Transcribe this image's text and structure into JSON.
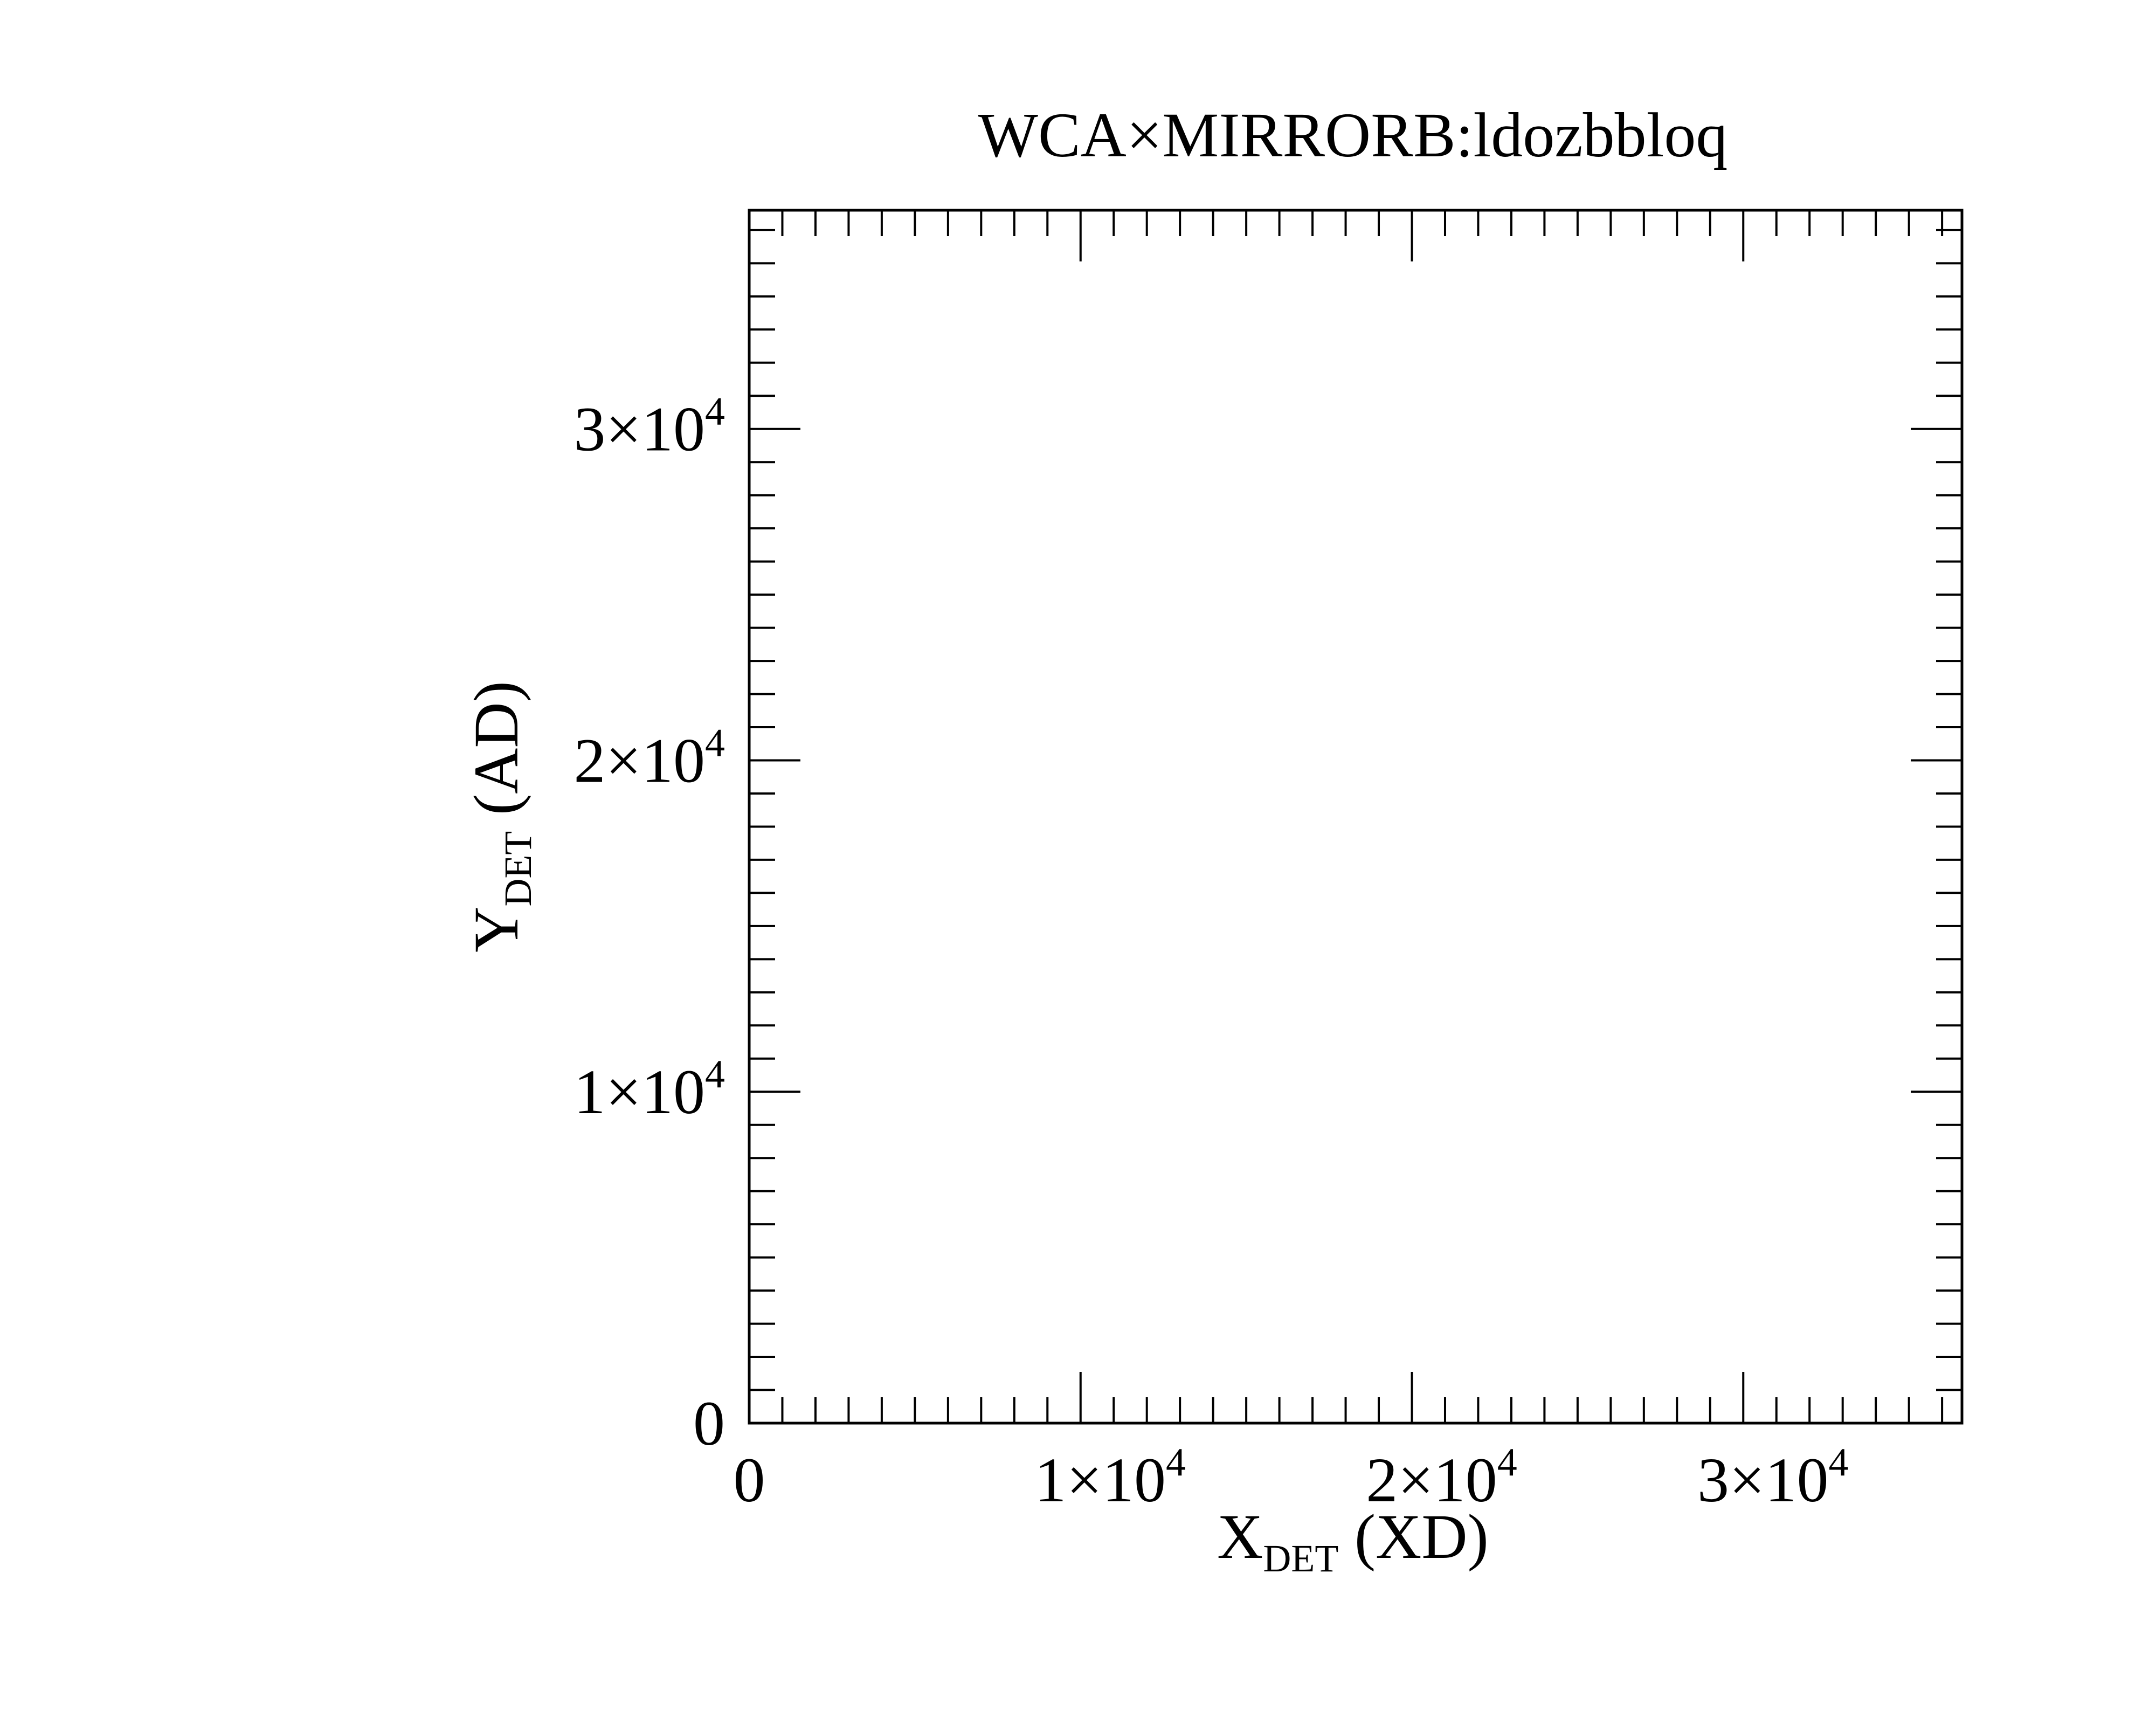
{
  "chart_data": {
    "type": "scatter",
    "title": "WCA×MIRRORB:ldozbbloq",
    "xlabel": {
      "main": "X",
      "sub": "DET",
      "unit": " (XD)"
    },
    "ylabel": {
      "main": "Y",
      "sub": "DET",
      "unit": " (AD)"
    },
    "xlim": [
      0,
      36600
    ],
    "ylim": [
      0,
      36600
    ],
    "major_step": 10000,
    "minor_step": 1000,
    "x_ticks": [
      {
        "value": 0,
        "mantissa": "0",
        "exponent": ""
      },
      {
        "value": 10000,
        "mantissa": "1×10",
        "exponent": "4"
      },
      {
        "value": 20000,
        "mantissa": "2×10",
        "exponent": "4"
      },
      {
        "value": 30000,
        "mantissa": "3×10",
        "exponent": "4"
      }
    ],
    "y_ticks": [
      {
        "value": 0,
        "mantissa": "0",
        "exponent": ""
      },
      {
        "value": 10000,
        "mantissa": "1×10",
        "exponent": "4"
      },
      {
        "value": 20000,
        "mantissa": "2×10",
        "exponent": "4"
      },
      {
        "value": 30000,
        "mantissa": "3×10",
        "exponent": "4"
      }
    ],
    "series": [
      {
        "points": []
      }
    ],
    "grid": false,
    "colors": {
      "axis": "#000000",
      "background": "#ffffff"
    }
  }
}
